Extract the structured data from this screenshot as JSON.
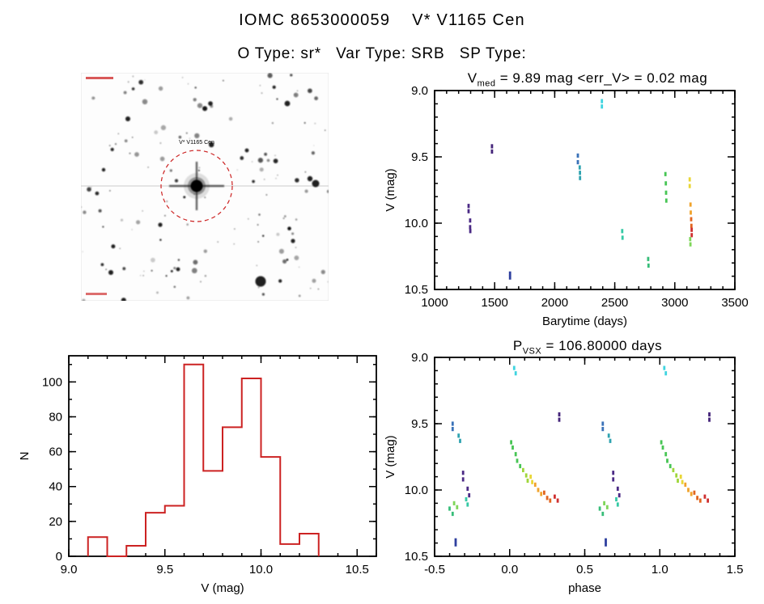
{
  "page": {
    "title": "IOMC 8653000059    V* V1165 Cen",
    "subtitle": "O Type: sr*   Var Type: SRB   SP Type:"
  },
  "finder": {
    "center_label": "V* V1165 Cen"
  },
  "chart_data": [
    {
      "id": "lightcurve",
      "type": "scatter",
      "title_parts": {
        "prefix": "V",
        "sub": "med",
        "rest": " = 9.89 mag <err_V> = 0.02 mag"
      },
      "xlabel": "Barytime (days)",
      "ylabel": "V (mag)",
      "xlim": [
        1000,
        3500
      ],
      "ylim": [
        10.5,
        9.0
      ],
      "xticks": [
        1000,
        1500,
        2000,
        2500,
        3000,
        3500
      ],
      "xtick_labels": [
        "1000",
        "1500",
        "2000",
        "2500",
        "3000",
        "3500"
      ],
      "yticks": [
        9.0,
        9.5,
        10.0,
        10.5
      ],
      "ytick_labels": [
        "9.0",
        "9.5",
        "10.0",
        "10.5"
      ],
      "xminor": 5,
      "yminor": 5,
      "grid": false,
      "legend": "none",
      "series": [
        {
          "name": "epoch-1285",
          "color": "#4b2a85",
          "points": [
            [
              1283,
              9.87
            ],
            [
              1283,
              9.91
            ],
            [
              1296,
              9.98
            ],
            [
              1296,
              10.03
            ],
            [
              1297,
              10.06
            ]
          ]
        },
        {
          "name": "epoch-1478",
          "color": "#45257a",
          "points": [
            [
              1478,
              9.42
            ],
            [
              1478,
              9.46
            ]
          ]
        },
        {
          "name": "epoch-1628",
          "color": "#2e3f9e",
          "points": [
            [
              1628,
              10.38
            ],
            [
              1628,
              10.41
            ]
          ]
        },
        {
          "name": "epoch-2193",
          "color": "#3a72b8",
          "points": [
            [
              2193,
              9.49
            ],
            [
              2193,
              9.54
            ]
          ]
        },
        {
          "name": "epoch-2210",
          "color": "#2fa3b0",
          "points": [
            [
              2208,
              9.58
            ],
            [
              2210,
              9.62
            ],
            [
              2211,
              9.66
            ]
          ]
        },
        {
          "name": "epoch-2393",
          "color": "#3fd4e0",
          "points": [
            [
              2393,
              9.08
            ],
            [
              2393,
              9.12
            ]
          ]
        },
        {
          "name": "epoch-2563",
          "color": "#35c9a5",
          "points": [
            [
              2562,
              10.06
            ],
            [
              2565,
              10.11
            ]
          ]
        },
        {
          "name": "epoch-2780",
          "color": "#37bd79",
          "points": [
            [
              2778,
              10.27
            ],
            [
              2781,
              10.32
            ]
          ]
        },
        {
          "name": "epoch-2925",
          "color": "#47c554",
          "points": [
            [
              2922,
              9.63
            ],
            [
              2925,
              9.7
            ],
            [
              2927,
              9.77
            ],
            [
              2929,
              9.83
            ]
          ]
        },
        {
          "name": "epoch-3124-a",
          "color": "#e9d636",
          "points": [
            [
              3124,
              9.67
            ],
            [
              3124,
              9.72
            ]
          ]
        },
        {
          "name": "epoch-3132-b",
          "color": "#f0a32c",
          "points": [
            [
              3131,
              9.86
            ],
            [
              3133,
              9.92
            ]
          ]
        },
        {
          "name": "epoch-3137-c",
          "color": "#e2651f",
          "points": [
            [
              3136,
              9.97
            ],
            [
              3138,
              10.02
            ]
          ]
        },
        {
          "name": "epoch-3140-d",
          "color": "#cf3030",
          "points": [
            [
              3140,
              10.05
            ],
            [
              3141,
              10.09
            ]
          ]
        },
        {
          "name": "epoch-3129-e",
          "color": "#7fd65a",
          "points": [
            [
              3128,
              10.12
            ],
            [
              3130,
              10.16
            ]
          ]
        }
      ]
    },
    {
      "id": "histogram",
      "type": "bar",
      "color": "#cc2222",
      "xlabel": "V (mag)",
      "ylabel": "N",
      "xlim": [
        9.0,
        10.6
      ],
      "ylim": [
        0,
        115
      ],
      "xticks": [
        9.0,
        9.5,
        10.0,
        10.5
      ],
      "xtick_labels": [
        "9.0",
        "9.5",
        "10.0",
        "10.5"
      ],
      "yticks": [
        0,
        20,
        40,
        60,
        80,
        100
      ],
      "ytick_labels": [
        "0",
        "20",
        "40",
        "60",
        "80",
        "100"
      ],
      "xminor": 5,
      "yminor": 2,
      "grid": false,
      "legend": "none",
      "bin_edges": [
        9.1,
        9.2,
        9.3,
        9.4,
        9.5,
        9.6,
        9.7,
        9.8,
        9.9,
        10.0,
        10.1,
        10.2,
        10.3
      ],
      "values": [
        11,
        0,
        6,
        25,
        29,
        110,
        49,
        74,
        102,
        57,
        7,
        13
      ]
    },
    {
      "id": "phase-folded",
      "type": "scatter",
      "title_parts": {
        "prefix": "P",
        "sub": "VSX",
        "rest": " = 106.80000 days"
      },
      "xlabel": "phase",
      "ylabel": "V (mag)",
      "xlim": [
        -0.5,
        1.5
      ],
      "ylim": [
        10.5,
        9.0
      ],
      "xticks": [
        -0.5,
        0.0,
        0.5,
        1.0,
        1.5
      ],
      "xtick_labels": [
        "-0.5",
        "0.0",
        "0.5",
        "1.0",
        "1.5"
      ],
      "yticks": [
        9.0,
        9.5,
        10.0,
        10.5
      ],
      "ytick_labels": [
        "9.0",
        "9.5",
        "10.0",
        "10.5"
      ],
      "xminor": 5,
      "yminor": 5,
      "grid": false,
      "legend": "none",
      "fold_repeat": true,
      "series": [
        {
          "name": "cyan",
          "color": "#3fd4e0",
          "points": [
            [
              0.03,
              9.08
            ],
            [
              0.04,
              9.12
            ]
          ]
        },
        {
          "name": "green-descend",
          "color": "#47c554",
          "points": [
            [
              0.01,
              9.64
            ],
            [
              0.02,
              9.68
            ],
            [
              0.04,
              9.73
            ],
            [
              0.05,
              9.78
            ],
            [
              0.07,
              9.82
            ]
          ]
        },
        {
          "name": "yellow-green",
          "color": "#9fd63a",
          "points": [
            [
              0.09,
              9.85
            ],
            [
              0.11,
              9.89
            ],
            [
              0.12,
              9.93
            ]
          ]
        },
        {
          "name": "yellow",
          "color": "#e9d636",
          "points": [
            [
              0.14,
              9.9
            ],
            [
              0.15,
              9.94
            ]
          ]
        },
        {
          "name": "orange",
          "color": "#f0a32c",
          "points": [
            [
              0.17,
              9.96
            ],
            [
              0.19,
              10.0
            ],
            [
              0.21,
              10.03
            ]
          ]
        },
        {
          "name": "orange-red",
          "color": "#e2651f",
          "points": [
            [
              0.23,
              10.02
            ],
            [
              0.25,
              10.06
            ],
            [
              0.27,
              10.08
            ]
          ]
        },
        {
          "name": "red",
          "color": "#cf3030",
          "points": [
            [
              0.3,
              10.05
            ],
            [
              0.32,
              10.08
            ]
          ]
        },
        {
          "name": "purple-945",
          "color": "#45257a",
          "points": [
            [
              0.33,
              9.43
            ],
            [
              0.33,
              9.47
            ]
          ]
        },
        {
          "name": "steel-blue",
          "color": "#3a72b8",
          "points": [
            [
              0.62,
              9.5
            ],
            [
              0.62,
              9.54
            ]
          ]
        },
        {
          "name": "teal",
          "color": "#2fa3b0",
          "points": [
            [
              0.66,
              9.59
            ],
            [
              0.67,
              9.63
            ]
          ]
        },
        {
          "name": "turquoise",
          "color": "#35c9a5",
          "points": [
            [
              0.71,
              10.07
            ],
            [
              0.72,
              10.11
            ]
          ]
        },
        {
          "name": "navy",
          "color": "#2e3f9e",
          "points": [
            [
              0.64,
              10.38
            ],
            [
              0.64,
              10.41
            ]
          ]
        },
        {
          "name": "purple-cluster",
          "color": "#4b2a85",
          "points": [
            [
              0.69,
              9.87
            ],
            [
              0.69,
              9.92
            ],
            [
              0.72,
              9.99
            ],
            [
              0.73,
              10.04
            ]
          ]
        },
        {
          "name": "green-1015",
          "color": "#37bd79",
          "points": [
            [
              0.6,
              10.14
            ],
            [
              0.62,
              10.18
            ]
          ]
        },
        {
          "name": "light-green",
          "color": "#7fd65a",
          "points": [
            [
              0.63,
              10.1
            ],
            [
              0.65,
              10.13
            ]
          ]
        }
      ]
    }
  ]
}
